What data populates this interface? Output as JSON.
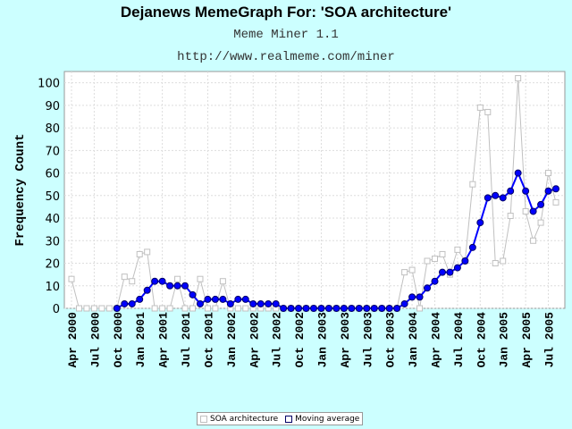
{
  "title": "Dejanews MemeGraph For: 'SOA architecture'",
  "subtitle": "Meme Miner 1.1",
  "url": "http://www.realmeme.com/miner",
  "colors": {
    "background": "#ccffff",
    "raw": "#c0c0c0",
    "average": "#0000ff",
    "average_outline": "#000066"
  },
  "chart_data": {
    "type": "line",
    "ylabel": "Frequency Count",
    "xlabel": "",
    "ylim": [
      0,
      105
    ],
    "yticks": [
      0,
      10,
      20,
      30,
      40,
      50,
      60,
      70,
      80,
      90,
      100
    ],
    "grid": true,
    "legend_position": "bottom-center",
    "x_tick_labels": [
      "Apr 2000",
      "Jul 2000",
      "Oct 2000",
      "Jan 2001",
      "Apr 2001",
      "Jul 2001",
      "Oct 2001",
      "Jan 2002",
      "Apr 2002",
      "Jul 2002",
      "Oct 2002",
      "Jan 2003",
      "Apr 2003",
      "Jul 2003",
      "Oct 2003",
      "Jan 2004",
      "Apr 2004",
      "Jul 2004",
      "Oct 2004",
      "Jan 2005",
      "Apr 2005",
      "Jul 2005"
    ],
    "series": [
      {
        "name": "SOA architecture",
        "values": [
          13,
          0,
          0,
          0,
          0,
          0,
          0,
          14,
          12,
          24,
          25,
          0,
          0,
          0,
          13,
          0,
          0,
          13,
          0,
          0,
          12,
          0,
          0,
          0,
          0,
          0,
          0,
          0,
          0,
          0,
          0,
          0,
          0,
          0,
          0,
          0,
          0,
          0,
          0,
          0,
          0,
          0,
          0,
          0,
          16,
          17,
          0,
          21,
          22,
          24,
          15,
          26,
          21,
          55,
          89,
          87,
          20,
          21,
          41,
          102,
          43,
          30,
          38,
          60,
          47
        ]
      },
      {
        "name": "Moving average",
        "values": [
          null,
          null,
          null,
          null,
          null,
          null,
          0,
          2,
          2,
          4,
          8,
          12,
          12,
          10,
          10,
          10,
          6,
          2,
          4,
          4,
          4,
          2,
          4,
          4,
          2,
          2,
          2,
          2,
          0,
          0,
          0,
          0,
          0,
          0,
          0,
          0,
          0,
          0,
          0,
          0,
          0,
          0,
          0,
          0,
          2,
          5,
          5,
          9,
          12,
          16,
          16,
          18,
          21,
          27,
          38,
          49,
          50,
          49,
          52,
          60,
          52,
          43,
          46,
          52,
          53
        ]
      }
    ]
  },
  "legend": {
    "raw_label": "SOA architecture",
    "avg_label": "Moving average"
  }
}
